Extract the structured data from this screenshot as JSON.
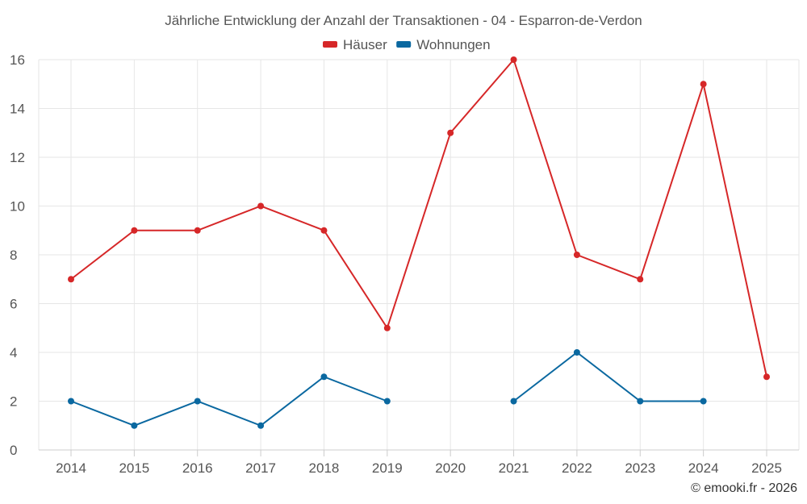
{
  "chart_data": {
    "type": "line",
    "title": "Jährliche Entwicklung der Anzahl der Transaktionen - 04 - Esparron-de-Verdon",
    "categories": [
      "2014",
      "2015",
      "2016",
      "2017",
      "2018",
      "2019",
      "2020",
      "2021",
      "2022",
      "2023",
      "2024",
      "2025"
    ],
    "series": [
      {
        "name": "Häuser",
        "color": "#d62728",
        "values": [
          7,
          9,
          9,
          10,
          9,
          5,
          13,
          16,
          8,
          7,
          15,
          3
        ]
      },
      {
        "name": "Wohnungen",
        "color": "#0a68a0",
        "values": [
          2,
          1,
          2,
          1,
          3,
          2,
          null,
          2,
          4,
          2,
          2,
          null
        ]
      }
    ],
    "ylim": [
      0,
      16
    ],
    "yticks": [
      0,
      2,
      4,
      6,
      8,
      10,
      12,
      14,
      16
    ],
    "xlabel": "",
    "ylabel": "",
    "grid": true,
    "legend": "top-center"
  },
  "credit": "© emooki.fr - 2026"
}
